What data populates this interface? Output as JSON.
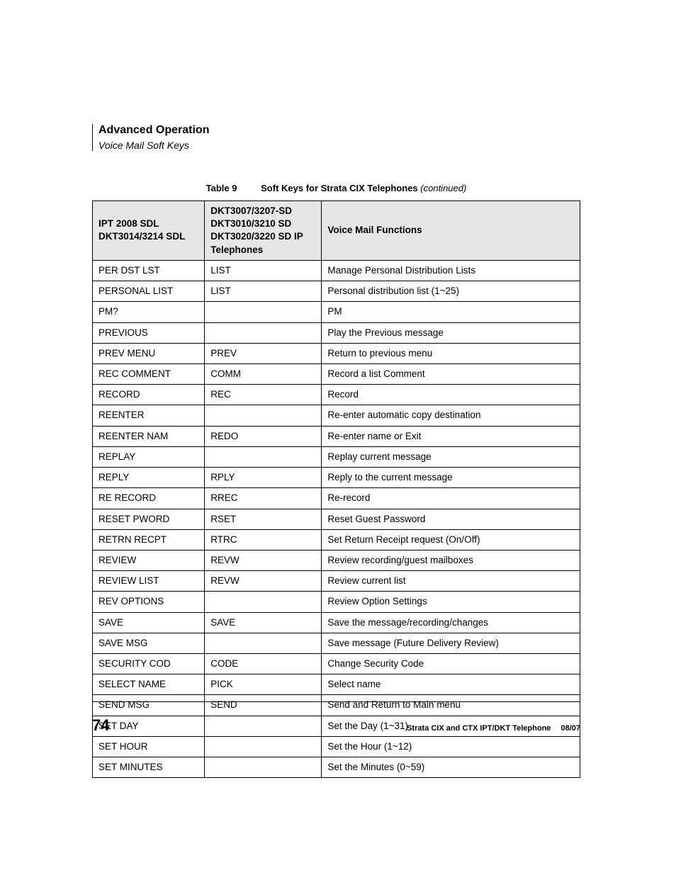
{
  "header": {
    "section": "Advanced Operation",
    "subsection": "Voice Mail Soft Keys"
  },
  "table": {
    "caption_label": "Table 9",
    "caption_title": "Soft Keys for Strata CIX Telephones",
    "caption_cont": "(continued)",
    "columns": {
      "col1": "IPT 2008 SDL DKT3014/3214 SDL",
      "col2": "DKT3007/3207-SD DKT3010/3210 SD DKT3020/3220 SD IP Telephones",
      "col3": "Voice Mail Functions"
    },
    "rows": [
      {
        "c1": "PER DST LST",
        "c2": "LIST",
        "c3": "Manage Personal Distribution Lists"
      },
      {
        "c1": "PERSONAL LIST",
        "c2": "LIST",
        "c3": "Personal distribution list (1~25)"
      },
      {
        "c1": "PM?",
        "c2": "",
        "c3": "PM"
      },
      {
        "c1": "PREVIOUS",
        "c2": "",
        "c3": "Play the Previous message"
      },
      {
        "c1": "PREV MENU",
        "c2": "PREV",
        "c3": "Return to previous menu"
      },
      {
        "c1": "REC COMMENT",
        "c2": "COMM",
        "c3": "Record a list Comment"
      },
      {
        "c1": "RECORD",
        "c2": "REC",
        "c3": "Record"
      },
      {
        "c1": "REENTER",
        "c2": "",
        "c3": "Re-enter automatic copy destination"
      },
      {
        "c1": "REENTER NAM",
        "c2": "REDO",
        "c3": "Re-enter name or Exit"
      },
      {
        "c1": "REPLAY",
        "c2": "",
        "c3": "Replay current message"
      },
      {
        "c1": "REPLY",
        "c2": "RPLY",
        "c3": "Reply to the current message"
      },
      {
        "c1": "RE RECORD",
        "c2": "RREC",
        "c3": "Re-record"
      },
      {
        "c1": "RESET PWORD",
        "c2": "RSET",
        "c3": "Reset Guest Password"
      },
      {
        "c1": "RETRN RECPT",
        "c2": "RTRC",
        "c3": "Set Return Receipt request (On/Off)"
      },
      {
        "c1": "REVIEW",
        "c2": "REVW",
        "c3": "Review recording/guest mailboxes"
      },
      {
        "c1": "REVIEW LIST",
        "c2": "REVW",
        "c3": "Review current list"
      },
      {
        "c1": "REV OPTIONS",
        "c2": "",
        "c3": "Review Option Settings"
      },
      {
        "c1": "SAVE",
        "c2": "SAVE",
        "c3": "Save the message/recording/changes"
      },
      {
        "c1": "SAVE MSG",
        "c2": "",
        "c3": "Save message (Future Delivery Review)"
      },
      {
        "c1": "SECURITY COD",
        "c2": "CODE",
        "c3": "Change Security Code"
      },
      {
        "c1": "SELECT NAME",
        "c2": "PICK",
        "c3": "Select name"
      },
      {
        "c1": "SEND MSG",
        "c2": "SEND",
        "c3": "Send and Return to Main menu"
      },
      {
        "c1": "SET DAY",
        "c2": "",
        "c3": "Set the Day (1~31)"
      },
      {
        "c1": "SET HOUR",
        "c2": "",
        "c3": "Set the Hour (1~12)"
      },
      {
        "c1": "SET MINUTES",
        "c2": "",
        "c3": "Set the Minutes (0~59)"
      }
    ]
  },
  "footer": {
    "page": "74",
    "text": "Strata CIX and CTX IPT/DKT Telephone  08/07"
  }
}
